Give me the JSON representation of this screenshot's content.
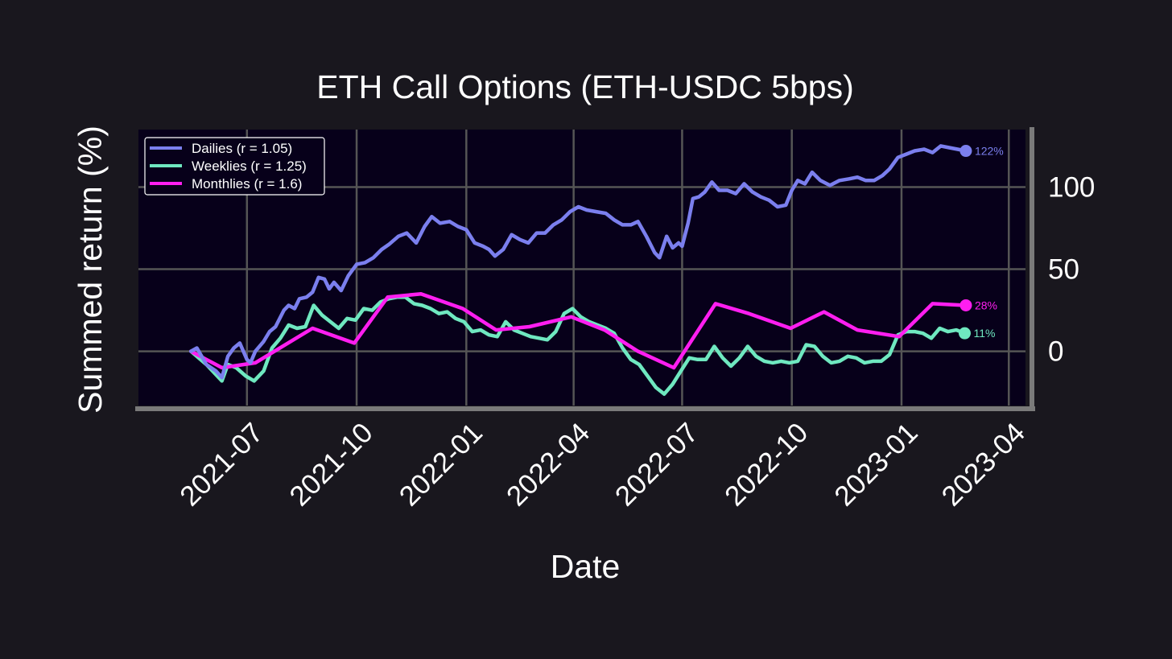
{
  "chart_data": {
    "type": "line",
    "title": "ETH Call Options (ETH-USDC 5bps)",
    "xlabel": "Date",
    "ylabel": "Summed return (%)",
    "x_ticks": [
      "2021-07",
      "2021-10",
      "2022-01",
      "2022-04",
      "2022-07",
      "2022-10",
      "2023-01",
      "2023-04"
    ],
    "y_ticks": [
      0,
      50,
      100
    ],
    "xlim": [
      "2021-04-01",
      "2023-04-15"
    ],
    "ylim": [
      -33,
      135
    ],
    "grid": true,
    "legend_position": "top-left",
    "background": "#07001a",
    "y_axis_side": "right",
    "series": [
      {
        "name": "Dailies (r = 1.05)",
        "color": "#7b7fee",
        "end_label": "122%",
        "points": [
          [
            "2021-05-15",
            0
          ],
          [
            "2021-05-20",
            2
          ],
          [
            "2021-05-28",
            -8
          ],
          [
            "2021-06-05",
            -12
          ],
          [
            "2021-06-10",
            -16
          ],
          [
            "2021-06-15",
            -3
          ],
          [
            "2021-06-20",
            2
          ],
          [
            "2021-06-25",
            5
          ],
          [
            "2021-07-01",
            -5
          ],
          [
            "2021-07-04",
            -7
          ],
          [
            "2021-07-08",
            0
          ],
          [
            "2021-07-15",
            6
          ],
          [
            "2021-07-20",
            12
          ],
          [
            "2021-07-25",
            15
          ],
          [
            "2021-08-01",
            25
          ],
          [
            "2021-08-05",
            28
          ],
          [
            "2021-08-10",
            26
          ],
          [
            "2021-08-14",
            32
          ],
          [
            "2021-08-20",
            33
          ],
          [
            "2021-08-25",
            36
          ],
          [
            "2021-08-30",
            45
          ],
          [
            "2021-09-04",
            44
          ],
          [
            "2021-09-08",
            38
          ],
          [
            "2021-09-12",
            42
          ],
          [
            "2021-09-18",
            37
          ],
          [
            "2021-09-24",
            46
          ],
          [
            "2021-10-01",
            53
          ],
          [
            "2021-10-08",
            54
          ],
          [
            "2021-10-15",
            57
          ],
          [
            "2021-10-22",
            62
          ],
          [
            "2021-10-28",
            65
          ],
          [
            "2021-11-05",
            70
          ],
          [
            "2021-11-12",
            72
          ],
          [
            "2021-11-20",
            66
          ],
          [
            "2021-11-27",
            76
          ],
          [
            "2021-12-03",
            82
          ],
          [
            "2021-12-10",
            78
          ],
          [
            "2021-12-18",
            79
          ],
          [
            "2021-12-25",
            76
          ],
          [
            "2022-01-01",
            74
          ],
          [
            "2022-01-08",
            66
          ],
          [
            "2022-01-15",
            64
          ],
          [
            "2022-01-20",
            62
          ],
          [
            "2022-01-25",
            58
          ],
          [
            "2022-02-01",
            62
          ],
          [
            "2022-02-08",
            71
          ],
          [
            "2022-02-15",
            68
          ],
          [
            "2022-02-22",
            66
          ],
          [
            "2022-03-01",
            72
          ],
          [
            "2022-03-08",
            72
          ],
          [
            "2022-03-15",
            77
          ],
          [
            "2022-03-22",
            80
          ],
          [
            "2022-03-29",
            85
          ],
          [
            "2022-04-05",
            88
          ],
          [
            "2022-04-12",
            86
          ],
          [
            "2022-04-20",
            85
          ],
          [
            "2022-04-28",
            84
          ],
          [
            "2022-05-05",
            80
          ],
          [
            "2022-05-12",
            77
          ],
          [
            "2022-05-19",
            77
          ],
          [
            "2022-05-25",
            79
          ],
          [
            "2022-06-01",
            70
          ],
          [
            "2022-06-08",
            60
          ],
          [
            "2022-06-12",
            57
          ],
          [
            "2022-06-18",
            70
          ],
          [
            "2022-06-23",
            63
          ],
          [
            "2022-06-28",
            66
          ],
          [
            "2022-07-01",
            64
          ],
          [
            "2022-07-06",
            78
          ],
          [
            "2022-07-10",
            93
          ],
          [
            "2022-07-15",
            94
          ],
          [
            "2022-07-20",
            97
          ],
          [
            "2022-07-26",
            103
          ],
          [
            "2022-08-01",
            98
          ],
          [
            "2022-08-08",
            98
          ],
          [
            "2022-08-15",
            96
          ],
          [
            "2022-08-22",
            102
          ],
          [
            "2022-08-29",
            97
          ],
          [
            "2022-09-05",
            94
          ],
          [
            "2022-09-12",
            92
          ],
          [
            "2022-09-19",
            88
          ],
          [
            "2022-09-26",
            89
          ],
          [
            "2022-10-01",
            98
          ],
          [
            "2022-10-06",
            104
          ],
          [
            "2022-10-12",
            102
          ],
          [
            "2022-10-18",
            109
          ],
          [
            "2022-10-25",
            104
          ],
          [
            "2022-11-02",
            101
          ],
          [
            "2022-11-10",
            104
          ],
          [
            "2022-11-18",
            105
          ],
          [
            "2022-11-25",
            106
          ],
          [
            "2022-12-02",
            104
          ],
          [
            "2022-12-09",
            104
          ],
          [
            "2022-12-16",
            107
          ],
          [
            "2022-12-22",
            111
          ],
          [
            "2022-12-29",
            118
          ],
          [
            "2023-01-05",
            120
          ],
          [
            "2023-01-12",
            122
          ],
          [
            "2023-01-20",
            123
          ],
          [
            "2023-01-27",
            121
          ],
          [
            "2023-02-03",
            125
          ],
          [
            "2023-02-10",
            124
          ],
          [
            "2023-02-17",
            123
          ],
          [
            "2023-02-24",
            122
          ]
        ]
      },
      {
        "name": "Weeklies (r = 1.25)",
        "color": "#6fe8c0",
        "end_label": "11%",
        "points": [
          [
            "2021-05-15",
            0
          ],
          [
            "2021-05-28",
            -8
          ],
          [
            "2021-06-10",
            -18
          ],
          [
            "2021-06-15",
            -8
          ],
          [
            "2021-06-22",
            -10
          ],
          [
            "2021-06-30",
            -15
          ],
          [
            "2021-07-07",
            -18
          ],
          [
            "2021-07-15",
            -12
          ],
          [
            "2021-07-22",
            2
          ],
          [
            "2021-07-29",
            8
          ],
          [
            "2021-08-05",
            16
          ],
          [
            "2021-08-12",
            14
          ],
          [
            "2021-08-19",
            15
          ],
          [
            "2021-08-26",
            28
          ],
          [
            "2021-09-02",
            22
          ],
          [
            "2021-09-09",
            18
          ],
          [
            "2021-09-16",
            14
          ],
          [
            "2021-09-23",
            20
          ],
          [
            "2021-09-30",
            19
          ],
          [
            "2021-10-07",
            26
          ],
          [
            "2021-10-14",
            25
          ],
          [
            "2021-10-21",
            30
          ],
          [
            "2021-10-28",
            32
          ],
          [
            "2021-11-04",
            33
          ],
          [
            "2021-11-11",
            33
          ],
          [
            "2021-11-18",
            29
          ],
          [
            "2021-11-25",
            28
          ],
          [
            "2021-12-02",
            26
          ],
          [
            "2021-12-09",
            23
          ],
          [
            "2021-12-16",
            24
          ],
          [
            "2021-12-23",
            20
          ],
          [
            "2021-12-30",
            18
          ],
          [
            "2022-01-06",
            12
          ],
          [
            "2022-01-13",
            13
          ],
          [
            "2022-01-20",
            10
          ],
          [
            "2022-01-27",
            9
          ],
          [
            "2022-02-03",
            18
          ],
          [
            "2022-02-10",
            13
          ],
          [
            "2022-02-17",
            11
          ],
          [
            "2022-02-24",
            9
          ],
          [
            "2022-03-03",
            8
          ],
          [
            "2022-03-10",
            7
          ],
          [
            "2022-03-17",
            12
          ],
          [
            "2022-03-24",
            23
          ],
          [
            "2022-03-31",
            26
          ],
          [
            "2022-04-07",
            21
          ],
          [
            "2022-04-14",
            18
          ],
          [
            "2022-04-21",
            16
          ],
          [
            "2022-04-28",
            14
          ],
          [
            "2022-05-05",
            11
          ],
          [
            "2022-05-12",
            2
          ],
          [
            "2022-05-19",
            -5
          ],
          [
            "2022-05-26",
            -8
          ],
          [
            "2022-06-02",
            -15
          ],
          [
            "2022-06-09",
            -22
          ],
          [
            "2022-06-16",
            -26
          ],
          [
            "2022-06-23",
            -20
          ],
          [
            "2022-06-30",
            -12
          ],
          [
            "2022-07-07",
            -4
          ],
          [
            "2022-07-14",
            -5
          ],
          [
            "2022-07-21",
            -5
          ],
          [
            "2022-07-28",
            3
          ],
          [
            "2022-08-04",
            -4
          ],
          [
            "2022-08-11",
            -9
          ],
          [
            "2022-08-18",
            -4
          ],
          [
            "2022-08-25",
            3
          ],
          [
            "2022-09-01",
            -3
          ],
          [
            "2022-09-08",
            -6
          ],
          [
            "2022-09-15",
            -7
          ],
          [
            "2022-09-22",
            -6
          ],
          [
            "2022-09-29",
            -7
          ],
          [
            "2022-10-06",
            -6
          ],
          [
            "2022-10-13",
            4
          ],
          [
            "2022-10-20",
            3
          ],
          [
            "2022-10-27",
            -3
          ],
          [
            "2022-11-03",
            -7
          ],
          [
            "2022-11-10",
            -6
          ],
          [
            "2022-11-17",
            -3
          ],
          [
            "2022-11-24",
            -4
          ],
          [
            "2022-12-01",
            -7
          ],
          [
            "2022-12-08",
            -6
          ],
          [
            "2022-12-15",
            -6
          ],
          [
            "2022-12-22",
            -2
          ],
          [
            "2022-12-29",
            10
          ],
          [
            "2023-01-05",
            12
          ],
          [
            "2023-01-12",
            12
          ],
          [
            "2023-01-19",
            11
          ],
          [
            "2023-01-26",
            8
          ],
          [
            "2023-02-02",
            14
          ],
          [
            "2023-02-09",
            12
          ],
          [
            "2023-02-16",
            13
          ],
          [
            "2023-02-23",
            11
          ]
        ]
      },
      {
        "name": "Monthlies (r = 1.6)",
        "color": "#ff1ef0",
        "end_label": "28%",
        "points": [
          [
            "2021-05-15",
            0
          ],
          [
            "2021-06-10",
            -10
          ],
          [
            "2021-07-08",
            -7
          ],
          [
            "2021-08-25",
            14
          ],
          [
            "2021-09-29",
            5
          ],
          [
            "2021-10-27",
            33
          ],
          [
            "2021-11-24",
            35
          ],
          [
            "2021-12-29",
            26
          ],
          [
            "2022-01-26",
            13
          ],
          [
            "2022-02-23",
            15
          ],
          [
            "2022-03-30",
            21
          ],
          [
            "2022-04-27",
            13
          ],
          [
            "2022-05-25",
            0
          ],
          [
            "2022-06-24",
            -10
          ],
          [
            "2022-07-29",
            29
          ],
          [
            "2022-08-26",
            23
          ],
          [
            "2022-09-30",
            14
          ],
          [
            "2022-10-28",
            24
          ],
          [
            "2022-11-25",
            13
          ],
          [
            "2022-12-30",
            9
          ],
          [
            "2023-01-27",
            29
          ],
          [
            "2023-02-24",
            28
          ]
        ]
      }
    ]
  }
}
